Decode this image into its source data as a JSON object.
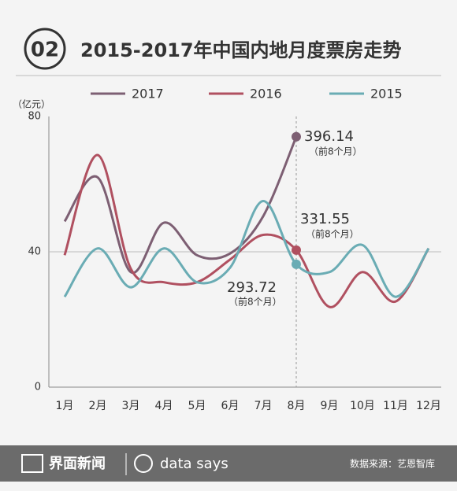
{
  "header": {
    "number": "02"
  },
  "chart_data": {
    "type": "line",
    "title": "2015-2017年中国内地月度票房走势",
    "y_unit": "（亿元）",
    "categories": [
      "1月",
      "2月",
      "3月",
      "4月",
      "5月",
      "6月",
      "7月",
      "8月",
      "9月",
      "10月",
      "11月",
      "12月"
    ],
    "series": [
      {
        "name": "2017",
        "color": "#7d5f73",
        "values": [
          49,
          62,
          34,
          48.6,
          39,
          39.5,
          50.5,
          74,
          null,
          null,
          null,
          null
        ]
      },
      {
        "name": "2016",
        "color": "#b05060",
        "values": [
          39,
          68.6,
          35,
          31,
          31,
          37.7,
          45,
          40.5,
          23.7,
          34,
          25.3,
          41
        ]
      },
      {
        "name": "2015",
        "color": "#6aacb4",
        "values": [
          26.7,
          41,
          29.5,
          41,
          31,
          35.3,
          55,
          36.3,
          34,
          42,
          26.7,
          41
        ]
      }
    ],
    "ylim": [
      0,
      80
    ],
    "yticks": [
      0,
      40,
      80
    ],
    "grid": true,
    "annotations": [
      {
        "text": "396.14",
        "note": "（前8个月）"
      },
      {
        "text": "331.55",
        "note": "（前8个月）"
      },
      {
        "text": "293.72",
        "note": "（前8个月）"
      }
    ]
  },
  "footer": {
    "brand": "界面新闻",
    "tagline": "data says",
    "source": "数据来源：艺恩智库"
  }
}
